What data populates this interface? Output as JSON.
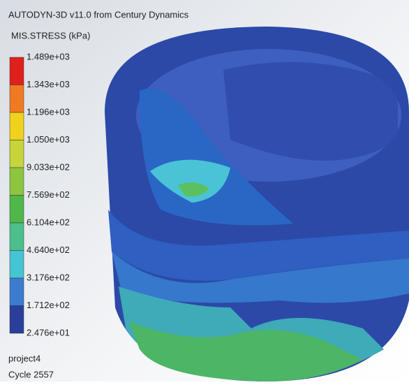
{
  "header": {
    "title": "AUTODYN-3D v11.0 from Century Dynamics",
    "variable": "MIS.STRESS (kPa)"
  },
  "legend": {
    "labels": [
      "1.489e+03",
      "1.343e+03",
      "1.196e+03",
      "1.050e+03",
      "9.033e+02",
      "7.569e+02",
      "6.104e+02",
      "4.640e+02",
      "3.176e+02",
      "1.712e+02",
      "2.476e+01"
    ],
    "colors": [
      "#e0201c",
      "#f07a22",
      "#f0d21c",
      "#c6d63a",
      "#8cc63e",
      "#4fb848",
      "#4dbf8c",
      "#45c4d4",
      "#3c7bd0",
      "#2a3f9c"
    ]
  },
  "footer": {
    "project": "project4",
    "cycle": "Cycle 2557"
  }
}
